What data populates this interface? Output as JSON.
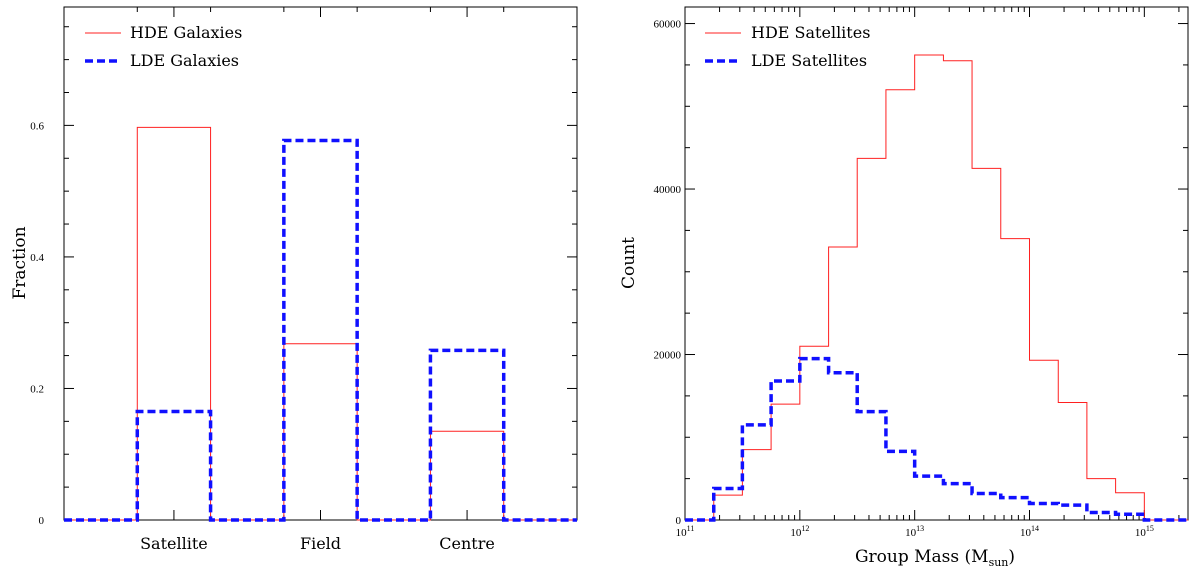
{
  "colors": {
    "hde": "#ff2020",
    "lde": "#1010ff",
    "axis": "#000000"
  },
  "chart_data": [
    {
      "type": "bar",
      "histogram_style": "step",
      "categories": [
        "Satellite",
        "Field",
        "Centre"
      ],
      "series": [
        {
          "name": "HDE Galaxies",
          "values": [
            0.597,
            0.268,
            0.135
          ],
          "line": "solid",
          "color": "#ff2020"
        },
        {
          "name": "LDE Galaxies",
          "values": [
            0.165,
            0.577,
            0.258
          ],
          "line": "dashed",
          "color": "#1010ff"
        }
      ],
      "xlabel": "",
      "ylabel": "Fraction",
      "ylim": [
        0,
        0.78
      ],
      "yticks": [
        {
          "value": 0,
          "label": "0"
        },
        {
          "value": 0.2,
          "label": "0.2"
        },
        {
          "value": 0.4,
          "label": "0.4"
        },
        {
          "value": 0.6,
          "label": "0.6"
        }
      ],
      "legend_position": "top-left",
      "grid": false
    },
    {
      "type": "bar",
      "histogram_style": "step",
      "x_scale": "log",
      "bin_edges": [
        100000000000.0,
        178000000000.0,
        316000000000.0,
        562000000000.0,
        1000000000000.0,
        1780000000000.0,
        3160000000000.0,
        5620000000000.0,
        10000000000000.0,
        17800000000000.0,
        31600000000000.0,
        56200000000000.0,
        100000000000000.0,
        178000000000000.0,
        316000000000000.0,
        562000000000000.0,
        1000000000000000.0,
        1780000000000000.0,
        2400000000000000.0
      ],
      "series": [
        {
          "name": "HDE Satellites",
          "values": [
            0,
            3000,
            8500,
            14000,
            21000,
            33000,
            43700,
            52000,
            56200,
            55500,
            42500,
            34000,
            19300,
            14200,
            5000,
            3300,
            0,
            0
          ],
          "line": "solid",
          "color": "#ff2020"
        },
        {
          "name": "LDE Satellites",
          "values": [
            0,
            3800,
            11500,
            16800,
            19500,
            17800,
            13100,
            8300,
            5300,
            4400,
            3200,
            2700,
            2000,
            1800,
            900,
            700,
            0,
            0
          ],
          "line": "dashed",
          "color": "#1010ff"
        }
      ],
      "xlabel": "Group Mass (M",
      "xlabel_sub": "sun",
      "xlabel_close": ")",
      "ylabel": "Count",
      "xlim": [
        100000000000.0,
        2400000000000000.0
      ],
      "ylim": [
        0,
        62000
      ],
      "yticks": [
        {
          "value": 0,
          "label": "0"
        },
        {
          "value": 20000,
          "label": "20000"
        },
        {
          "value": 40000,
          "label": "40000"
        },
        {
          "value": 60000,
          "label": "60000"
        }
      ],
      "xticks": [
        {
          "value": 100000000000.0,
          "base": "10",
          "exp": "11"
        },
        {
          "value": 1000000000000.0,
          "base": "10",
          "exp": "12"
        },
        {
          "value": 10000000000000.0,
          "base": "10",
          "exp": "13"
        },
        {
          "value": 100000000000000.0,
          "base": "10",
          "exp": "14"
        },
        {
          "value": 1000000000000000.0,
          "base": "10",
          "exp": "15"
        }
      ],
      "legend_position": "top-left",
      "grid": false
    }
  ]
}
